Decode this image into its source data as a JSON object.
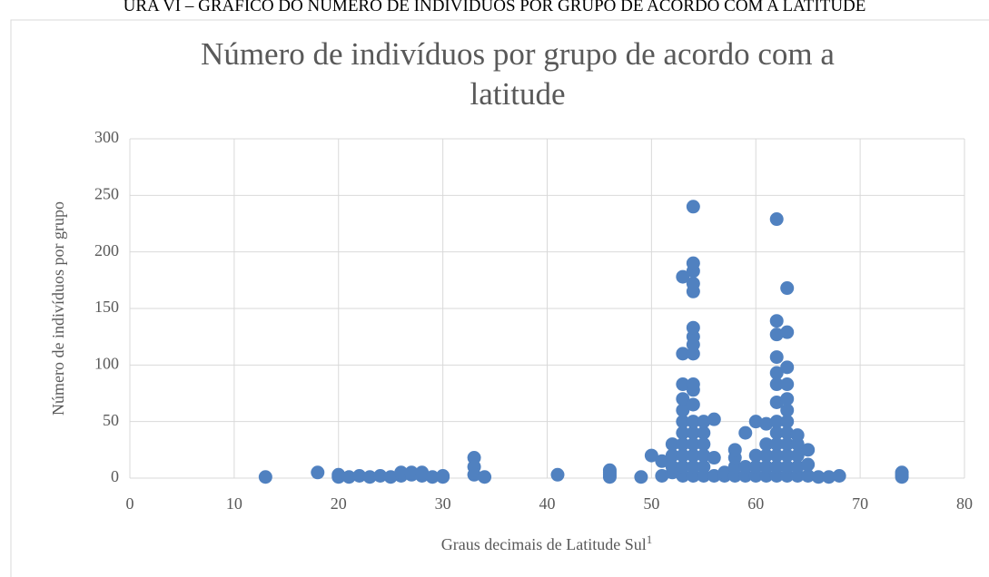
{
  "caption": "URA VI – GRÁFICO DO NÚMERO DE INDIVÍDUOS POR GRUPO DE ACORDO COM A LATITUDE",
  "chart_data": {
    "type": "scatter",
    "title": "Número de indivíduos por grupo de acordo com a latitude",
    "x_label": "Graus decimais de Latitude Sul",
    "x_label_footnote": "1",
    "y_label": "Número de indivíduos por grupo",
    "color": "#5081c0",
    "grid": true,
    "xlim": [
      0,
      80
    ],
    "xticks": [
      0,
      10,
      20,
      30,
      40,
      50,
      60,
      70,
      80
    ],
    "ylim": [
      0,
      300
    ],
    "yticks": [
      0,
      50,
      100,
      150,
      200,
      250,
      300
    ],
    "x": [
      13,
      18,
      20,
      20,
      21,
      22,
      23,
      24,
      25,
      26,
      26,
      27,
      27,
      28,
      28,
      29,
      30,
      30,
      33,
      33,
      33,
      34,
      41,
      46,
      46,
      46,
      46,
      49,
      50,
      51,
      51,
      52,
      52,
      52,
      52,
      53,
      53,
      53,
      53,
      53,
      53,
      53,
      53,
      53,
      53,
      53,
      54,
      54,
      54,
      54,
      54,
      54,
      54,
      54,
      54,
      54,
      54,
      54,
      54,
      54,
      54,
      54,
      54,
      54,
      55,
      55,
      55,
      55,
      55,
      55,
      56,
      56,
      56,
      57,
      57,
      58,
      58,
      58,
      58,
      59,
      59,
      59,
      60,
      60,
      60,
      60,
      61,
      61,
      61,
      61,
      61,
      62,
      62,
      62,
      62,
      62,
      62,
      62,
      62,
      62,
      62,
      62,
      62,
      62,
      63,
      63,
      63,
      63,
      63,
      63,
      63,
      63,
      63,
      63,
      63,
      63,
      64,
      64,
      64,
      64,
      64,
      65,
      65,
      65,
      66,
      67,
      68,
      74,
      74,
      74
    ],
    "y": [
      1,
      5,
      1,
      3,
      1,
      2,
      1,
      2,
      1,
      2,
      5,
      3,
      5,
      2,
      5,
      1,
      1,
      2,
      18,
      10,
      3,
      1,
      3,
      1,
      3,
      5,
      7,
      1,
      20,
      2,
      15,
      5,
      10,
      20,
      30,
      2,
      10,
      20,
      30,
      40,
      50,
      60,
      70,
      83,
      110,
      178,
      2,
      10,
      20,
      30,
      40,
      50,
      65,
      78,
      83,
      110,
      118,
      125,
      133,
      165,
      172,
      183,
      190,
      240,
      2,
      10,
      20,
      30,
      40,
      50,
      2,
      18,
      52,
      2,
      5,
      2,
      10,
      18,
      25,
      2,
      10,
      40,
      2,
      10,
      20,
      50,
      2,
      10,
      20,
      30,
      48,
      2,
      10,
      20,
      30,
      40,
      50,
      67,
      83,
      93,
      107,
      127,
      139,
      229,
      2,
      10,
      20,
      30,
      40,
      50,
      60,
      70,
      83,
      98,
      129,
      168,
      2,
      10,
      20,
      30,
      38,
      2,
      12,
      25,
      1,
      1,
      2,
      1,
      3,
      5
    ]
  }
}
